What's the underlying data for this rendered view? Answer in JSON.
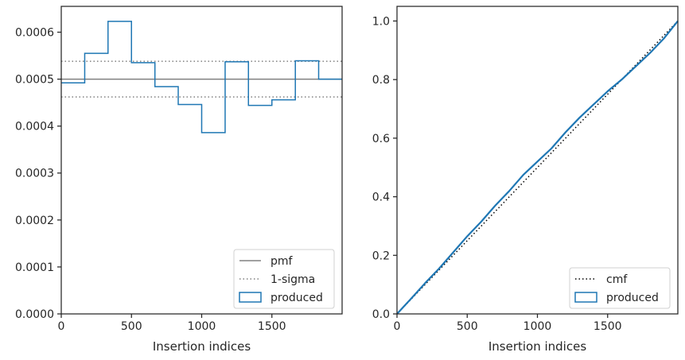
{
  "chart_data": [
    {
      "type": "step",
      "xlabel": "Insertion indices",
      "ylabel": "",
      "xlim": [
        0,
        2000
      ],
      "ylim": [
        0,
        0.000655
      ],
      "xticks": [
        0,
        500,
        1000,
        1500
      ],
      "xtick_labels": [
        "0",
        "500",
        "1000",
        "1500"
      ],
      "yticks": [
        0,
        0.0001,
        0.0002,
        0.0003,
        0.0004,
        0.0005,
        0.0006
      ],
      "ytick_labels": [
        "0.0000",
        "0.0001",
        "0.0002",
        "0.0003",
        "0.0004",
        "0.0005",
        "0.0006"
      ],
      "grid": false,
      "legend_position": "bottom-right",
      "legend": [
        {
          "label": "pmf",
          "style": "solid-line",
          "color": "#808080"
        },
        {
          "label": "1-sigma",
          "style": "dotted-line",
          "color": "#808080"
        },
        {
          "label": "produced",
          "style": "step-patch",
          "color": "#1f77b4"
        }
      ],
      "pmf": 0.0005,
      "sigma_band": [
        0.000462,
        0.000538
      ],
      "bin_edges": [
        0,
        167,
        333,
        500,
        667,
        833,
        1000,
        1167,
        1333,
        1500,
        1667,
        1833,
        2000
      ],
      "values": [
        0.000492,
        0.000555,
        0.000623,
        0.000535,
        0.000484,
        0.000446,
        0.000386,
        0.000537,
        0.000444,
        0.000456,
        0.000539,
        0.0005
      ]
    },
    {
      "type": "line",
      "xlabel": "Insertion indices",
      "ylabel": "",
      "xlim": [
        0,
        2000
      ],
      "ylim": [
        0,
        1.05
      ],
      "xticks": [
        0,
        500,
        1000,
        1500
      ],
      "xtick_labels": [
        "0",
        "500",
        "1000",
        "1500"
      ],
      "yticks": [
        0,
        0.2,
        0.4,
        0.6,
        0.8,
        1.0
      ],
      "ytick_labels": [
        "0.0",
        "0.2",
        "0.4",
        "0.6",
        "0.8",
        "1.0"
      ],
      "grid": false,
      "legend_position": "bottom-right",
      "legend": [
        {
          "label": "cmf",
          "style": "dotted-line",
          "color": "#000000"
        },
        {
          "label": "produced",
          "style": "step-patch",
          "color": "#1f77b4"
        }
      ],
      "cmf": {
        "x": [
          0,
          2000
        ],
        "y": [
          0,
          1.0
        ]
      },
      "produced": {
        "x": [
          0,
          100,
          200,
          300,
          400,
          500,
          600,
          700,
          800,
          900,
          1000,
          1100,
          1200,
          1300,
          1400,
          1500,
          1600,
          1700,
          1800,
          1900,
          2000
        ],
        "y": [
          0,
          0.052,
          0.105,
          0.155,
          0.21,
          0.265,
          0.315,
          0.37,
          0.42,
          0.475,
          0.52,
          0.565,
          0.62,
          0.67,
          0.715,
          0.76,
          0.8,
          0.845,
          0.89,
          0.94,
          1.0
        ]
      }
    }
  ]
}
